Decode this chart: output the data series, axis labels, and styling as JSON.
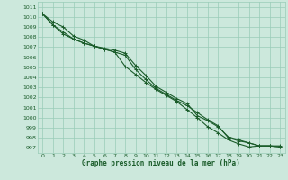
{
  "bg_color": "#cce8dc",
  "grid_color": "#99ccb8",
  "line_color": "#1a5c2a",
  "xlabel": "Graphe pression niveau de la mer (hPa)",
  "ylim": [
    996.5,
    1011.5
  ],
  "xlim": [
    -0.5,
    23.5
  ],
  "yticks": [
    997,
    998,
    999,
    1000,
    1001,
    1002,
    1003,
    1004,
    1005,
    1006,
    1007,
    1008,
    1009,
    1010,
    1011
  ],
  "xticks": [
    0,
    1,
    2,
    3,
    4,
    5,
    6,
    7,
    8,
    9,
    10,
    11,
    12,
    13,
    14,
    15,
    16,
    17,
    18,
    19,
    20,
    21,
    22,
    23
  ],
  "series": [
    [
      1010.3,
      1009.5,
      1009.0,
      1008.1,
      1007.7,
      1007.1,
      1006.8,
      1006.5,
      1005.1,
      1004.3,
      1003.5,
      1002.8,
      1002.2,
      1001.6,
      1000.8,
      1000.0,
      999.1,
      998.5,
      997.8,
      997.4,
      997.1,
      997.2,
      997.2,
      997.1
    ],
    [
      1010.3,
      1009.2,
      1008.5,
      1007.8,
      1007.4,
      1007.1,
      1006.8,
      1006.5,
      1006.2,
      1004.8,
      1003.8,
      1002.9,
      1002.3,
      1001.7,
      1001.2,
      1000.5,
      999.8,
      999.2,
      998.0,
      997.7,
      997.5,
      997.2,
      997.2,
      997.1
    ],
    [
      1010.3,
      1009.2,
      1008.3,
      1007.8,
      1007.4,
      1007.1,
      1006.9,
      1006.7,
      1006.4,
      1005.2,
      1004.2,
      1003.1,
      1002.5,
      1001.9,
      1001.4,
      1000.2,
      999.7,
      999.1,
      998.1,
      997.8,
      997.5,
      997.2,
      997.2,
      997.2
    ]
  ]
}
